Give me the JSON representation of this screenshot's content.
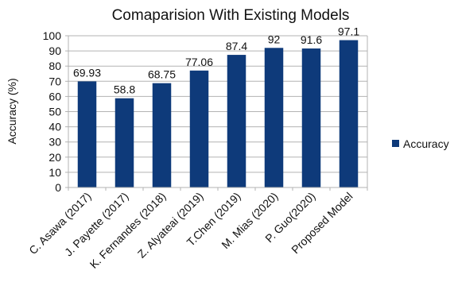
{
  "chart_data": {
    "type": "bar",
    "title": "Comaparision With Existing Models",
    "ylabel": "Accuracy (%)",
    "xlabel": "",
    "ylim": [
      0,
      100
    ],
    "yticks": [
      0,
      10,
      20,
      30,
      40,
      50,
      60,
      70,
      80,
      90,
      100
    ],
    "grid": "horizontal",
    "legend_position": "right",
    "categories": [
      "C. Asawa (2017)",
      "J. Payette (2017)",
      "K. Fernandes (2018)",
      "Z. Alyateai (2019)",
      "T.Chen (2019)",
      "M. Mias (2020)",
      "P. Guo(2020)",
      "Proposed Model"
    ],
    "data_labels": [
      "69.93",
      "58.8",
      "68.75",
      "77.06",
      "87.4",
      "92",
      "91.6",
      "97.1"
    ],
    "series": [
      {
        "name": "Accuracy",
        "color": "#0e3a7a",
        "values": [
          69.93,
          58.8,
          68.75,
          77.06,
          87.4,
          92,
          91.6,
          97.1
        ]
      }
    ]
  }
}
